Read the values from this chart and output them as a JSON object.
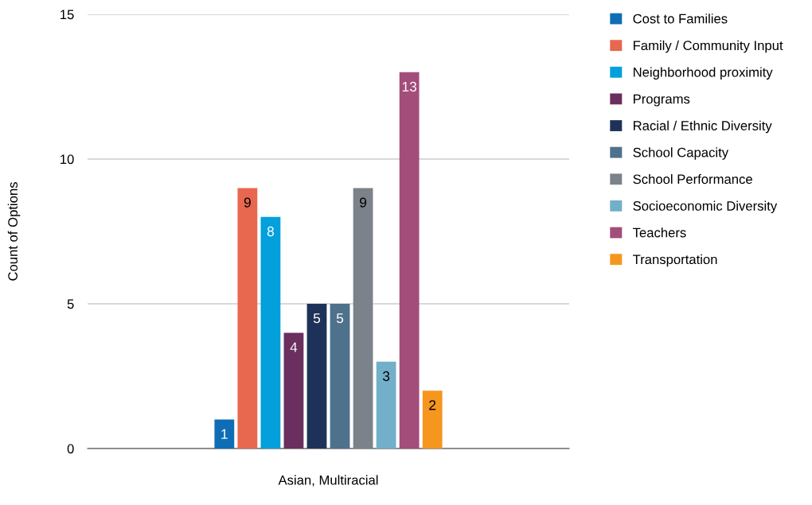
{
  "chart_data": {
    "type": "bar",
    "categories": [
      "Asian, Multiracial"
    ],
    "ylabel": "Count of Options",
    "series": [
      {
        "name": "Cost to Families",
        "color": "#0f6db5",
        "values": [
          1
        ]
      },
      {
        "name": "Family / Community Input",
        "color": "#e8674f",
        "values": [
          9
        ]
      },
      {
        "name": "Neighborhood proximity",
        "color": "#03a0dc",
        "values": [
          8
        ]
      },
      {
        "name": "Programs",
        "color": "#6a2f5e",
        "values": [
          4
        ]
      },
      {
        "name": "Racial / Ethnic Diversity",
        "color": "#1e3259",
        "values": [
          5
        ]
      },
      {
        "name": "School Capacity",
        "color": "#4e718c",
        "values": [
          5
        ]
      },
      {
        "name": "School Performance",
        "color": "#7b8289",
        "values": [
          9
        ]
      },
      {
        "name": "Socioeconomic Diversity",
        "color": "#72afc9",
        "values": [
          3
        ]
      },
      {
        "name": "Teachers",
        "color": "#a24d7a",
        "values": [
          13
        ]
      },
      {
        "name": "Transportation",
        "color": "#f5961f",
        "values": [
          2
        ]
      }
    ],
    "ylim": [
      0,
      15
    ],
    "yticks": [
      0,
      5,
      10,
      15
    ],
    "grid": "y",
    "legend": "right",
    "data_labels": true
  }
}
